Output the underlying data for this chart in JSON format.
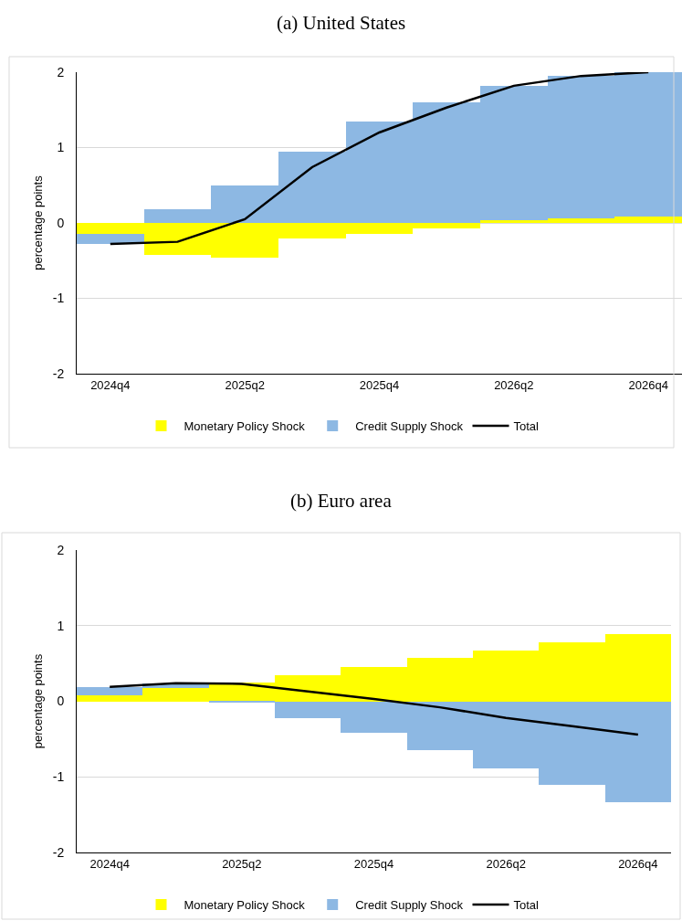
{
  "chart_data": [
    {
      "type": "bar",
      "title": "(a) United States",
      "ylabel": "percentage points",
      "categories": [
        "2024q4",
        null,
        "2025q2",
        null,
        "2025q4",
        null,
        "2026q2",
        null,
        "2026q4"
      ],
      "stacked": true,
      "ylim": [
        -2,
        2
      ],
      "yticks": [
        -2,
        -1,
        0,
        1,
        2
      ],
      "grid": "y",
      "legend": "bottom",
      "series": [
        {
          "name": "Monetary Policy Shock",
          "color": "#ffff00",
          "values": [
            -0.14,
            -0.43,
            -0.46,
            -0.21,
            -0.15,
            -0.07,
            0.04,
            0.06,
            0.09
          ]
        },
        {
          "name": "Credit Supply Shock",
          "color": "#8db8e3",
          "values": [
            -0.14,
            0.18,
            0.5,
            0.94,
            1.35,
            1.6,
            1.78,
            1.89,
            1.91
          ]
        },
        {
          "name": "Total",
          "type": "line",
          "color": "#000000",
          "values": [
            -0.28,
            -0.25,
            0.05,
            0.74,
            1.2,
            1.53,
            1.82,
            1.95,
            2.0
          ]
        }
      ]
    },
    {
      "type": "bar",
      "title": "(b) Euro area",
      "ylabel": "percentage points",
      "categories": [
        "2024q4",
        null,
        "2025q2",
        null,
        "2025q4",
        null,
        "2026q2",
        null,
        "2026q4"
      ],
      "stacked": true,
      "ylim": [
        -2,
        2
      ],
      "yticks": [
        -2,
        -1,
        0,
        1,
        2
      ],
      "grid": "y",
      "legend": "bottom",
      "series": [
        {
          "name": "Monetary Policy Shock",
          "color": "#ffff00",
          "values": [
            0.08,
            0.18,
            0.25,
            0.35,
            0.45,
            0.57,
            0.67,
            0.78,
            0.89
          ]
        },
        {
          "name": "Credit Supply Shock",
          "color": "#8db8e3",
          "values": [
            0.11,
            0.06,
            -0.02,
            -0.22,
            -0.42,
            -0.65,
            -0.89,
            -1.11,
            -1.33
          ]
        },
        {
          "name": "Total",
          "type": "line",
          "color": "#000000",
          "values": [
            0.19,
            0.24,
            0.23,
            0.13,
            0.03,
            -0.08,
            -0.22,
            -0.33,
            -0.44
          ]
        }
      ]
    }
  ]
}
